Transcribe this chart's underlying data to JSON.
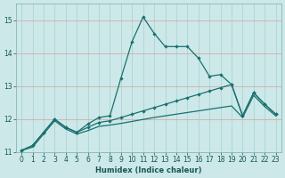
{
  "xlabel": "Humidex (Indice chaleur)",
  "background_color": "#cce8e8",
  "grid_color_v": "#a8d0d0",
  "grid_color_h": "#d8a0a0",
  "line_color": "#1a7070",
  "xlim": [
    -0.5,
    23.5
  ],
  "ylim": [
    11,
    15.5
  ],
  "yticks": [
    11,
    12,
    13,
    14,
    15
  ],
  "xticks": [
    0,
    1,
    2,
    3,
    4,
    5,
    6,
    7,
    8,
    9,
    10,
    11,
    12,
    13,
    14,
    15,
    16,
    17,
    18,
    19,
    20,
    21,
    22,
    23
  ],
  "line1_y": [
    11.05,
    11.2,
    11.6,
    12.0,
    11.75,
    11.6,
    11.85,
    12.05,
    12.1,
    13.25,
    14.35,
    15.1,
    14.6,
    14.2,
    14.2,
    14.2,
    13.85,
    13.3,
    13.35,
    13.05,
    12.1,
    12.8,
    12.45,
    12.15
  ],
  "line2_y": [
    11.05,
    11.2,
    11.6,
    12.0,
    11.75,
    11.6,
    11.75,
    11.9,
    11.95,
    12.05,
    12.15,
    12.25,
    12.35,
    12.45,
    12.55,
    12.65,
    12.75,
    12.85,
    12.95,
    13.05,
    12.1,
    12.8,
    12.45,
    12.15
  ],
  "line3_y": [
    11.05,
    11.15,
    11.55,
    11.95,
    11.7,
    11.55,
    11.65,
    11.78,
    11.82,
    11.87,
    11.93,
    11.99,
    12.05,
    12.1,
    12.15,
    12.2,
    12.25,
    12.3,
    12.35,
    12.4,
    12.05,
    12.72,
    12.38,
    12.1
  ]
}
